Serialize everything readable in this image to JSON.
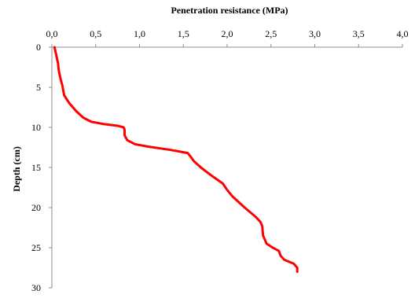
{
  "chart_data": {
    "type": "line",
    "title": "",
    "xlabel": "Penetration resistance (MPa)",
    "ylabel": "Depth (cm)",
    "xlim": [
      0,
      4.0
    ],
    "ylim": [
      0,
      30
    ],
    "y_inverted": true,
    "x_axis_position": "top",
    "grid": false,
    "legend": "none",
    "x_tick_labels": [
      "0,0",
      "0,5",
      "1,0",
      "1,5",
      "2,0",
      "2,5",
      "3,0",
      "3,5",
      "4,0"
    ],
    "y_tick_labels": [
      "0",
      "5",
      "10",
      "15",
      "20",
      "25",
      "30"
    ],
    "series": [
      {
        "color": "#ff0000",
        "x": [
          0.03,
          0.05,
          0.07,
          0.08,
          0.1,
          0.12,
          0.14,
          0.2,
          0.28,
          0.36,
          0.45,
          0.6,
          0.75,
          0.82,
          0.83,
          0.83,
          0.86,
          0.95,
          1.1,
          1.35,
          1.55,
          1.58,
          1.62,
          1.7,
          1.82,
          1.95,
          2.0,
          2.06,
          2.12,
          2.2,
          2.33,
          2.38,
          2.4,
          2.41,
          2.45,
          2.52,
          2.59,
          2.61,
          2.65,
          2.76,
          2.8,
          2.8
        ],
        "y": [
          0,
          1,
          2,
          3,
          4,
          4.8,
          6,
          7,
          8,
          8.8,
          9.3,
          9.6,
          9.8,
          10.0,
          10.3,
          11.0,
          11.6,
          12.1,
          12.4,
          12.8,
          13.2,
          13.6,
          14.2,
          15.0,
          16.0,
          17.0,
          17.8,
          18.6,
          19.2,
          20.0,
          21.2,
          21.8,
          22.3,
          23.5,
          24.5,
          25.0,
          25.4,
          26.0,
          26.5,
          27.0,
          27.5,
          28.0
        ]
      }
    ]
  }
}
